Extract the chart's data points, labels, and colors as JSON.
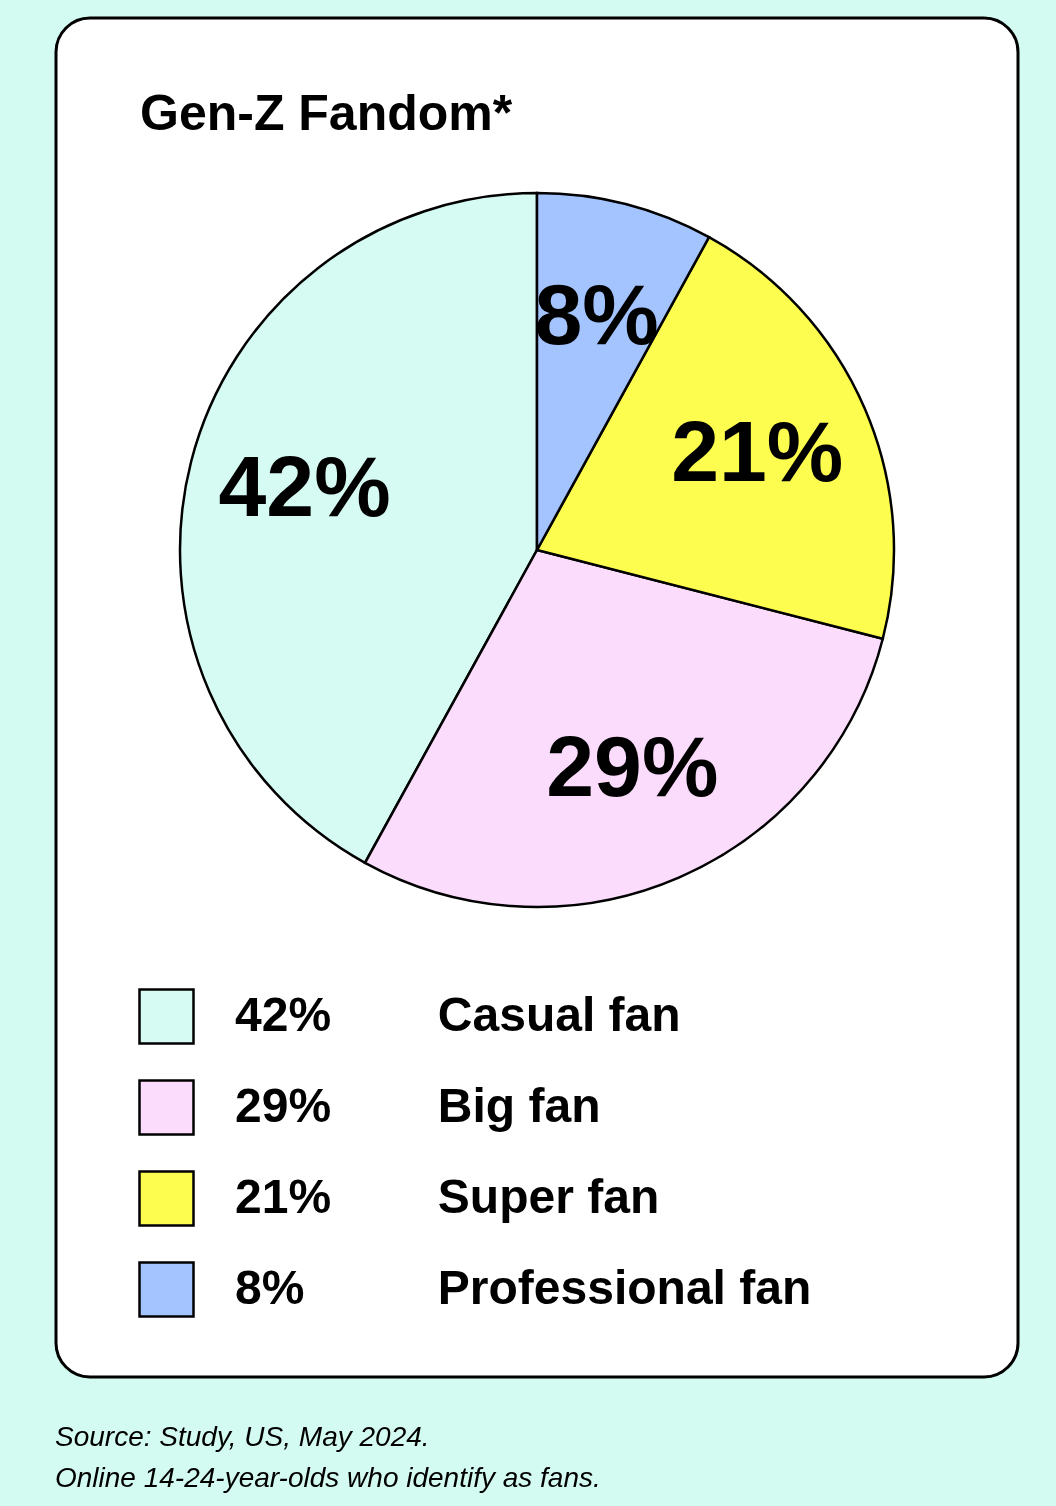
{
  "chart_data": {
    "type": "pie",
    "title": "Gen-Z Fandom*",
    "categories": [
      "Casual fan",
      "Big fan",
      "Super fan",
      "Professional fan"
    ],
    "values": [
      42,
      29,
      21,
      8
    ],
    "value_labels": [
      "42%",
      "29%",
      "21%",
      "8%"
    ],
    "colors": [
      "#d6fbf3",
      "#fcdcfc",
      "#fdfd4f",
      "#a4c4ff"
    ],
    "legend": "bottom",
    "annotations": [
      "Source: Study, US, May 2024.",
      "Online 14-24-year-olds who identify as fans."
    ]
  }
}
